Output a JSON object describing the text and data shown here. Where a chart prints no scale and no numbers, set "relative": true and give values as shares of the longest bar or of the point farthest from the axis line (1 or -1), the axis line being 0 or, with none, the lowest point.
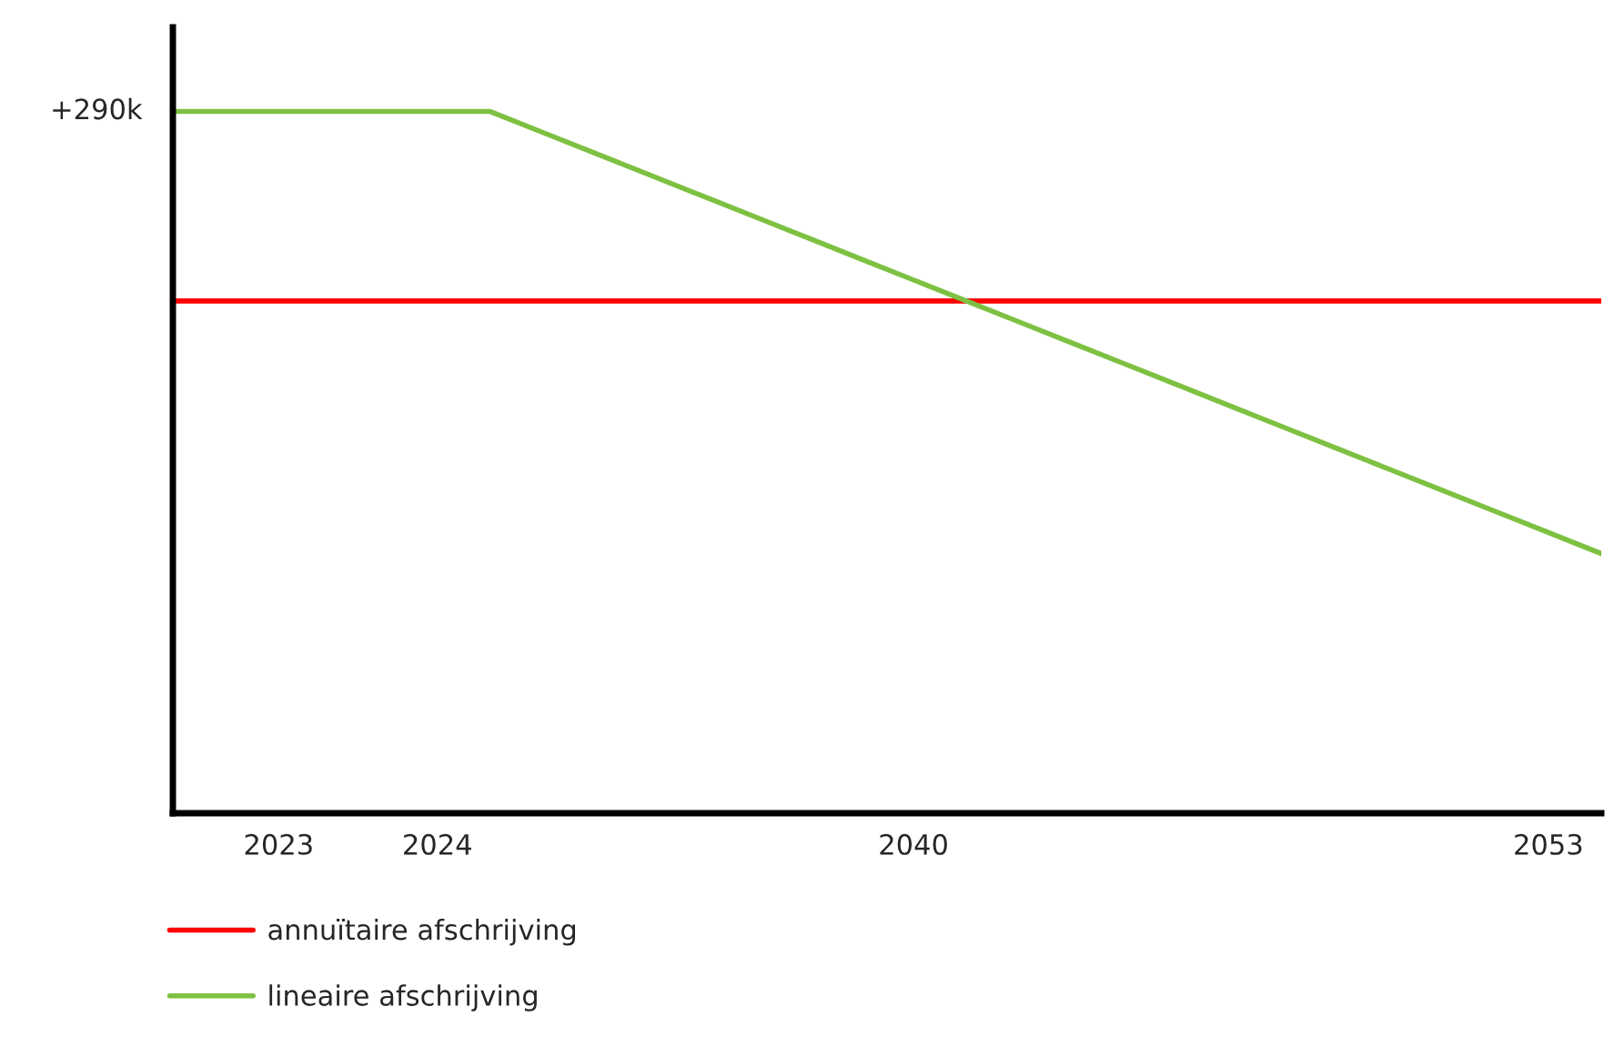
{
  "chart_data": {
    "type": "line",
    "relative": true,
    "categories": [
      null,
      null,
      "2023",
      null,
      null,
      "2024",
      null,
      null,
      null,
      null,
      null,
      null,
      null,
      null,
      "2040",
      null,
      null,
      null,
      null,
      null,
      null,
      null,
      null,
      null,
      null,
      null,
      "2053",
      null
    ],
    "series": [
      {
        "name": "annuïtaire afschrijving",
        "color": "#ff0000",
        "values": [
          0.73,
          0.73,
          0.73,
          0.73,
          0.73,
          0.73,
          0.73,
          0.73,
          0.73,
          0.73,
          0.73,
          0.73,
          0.73,
          0.73,
          0.73,
          0.73,
          0.73,
          0.73,
          0.73,
          0.73,
          0.73,
          0.73,
          0.73,
          0.73,
          0.73,
          0.73,
          0.73,
          0.73
        ]
      },
      {
        "name": "lineaire afschrijving",
        "color": "#7dc142",
        "values": [
          1,
          1,
          1,
          1,
          1,
          1,
          1,
          0.97,
          0.94,
          0.91,
          0.88,
          0.85,
          0.82,
          0.79,
          0.76,
          0.73,
          0.7,
          0.67,
          0.64,
          0.61,
          0.58,
          0.55,
          0.52,
          0.49,
          0.46,
          0.43,
          0.4,
          0.37
        ]
      }
    ],
    "annotations": [
      "+290k"
    ],
    "legend": "bottom",
    "grid": false,
    "tick_labels": "x",
    "marker": "none",
    "line_style": "solid"
  }
}
